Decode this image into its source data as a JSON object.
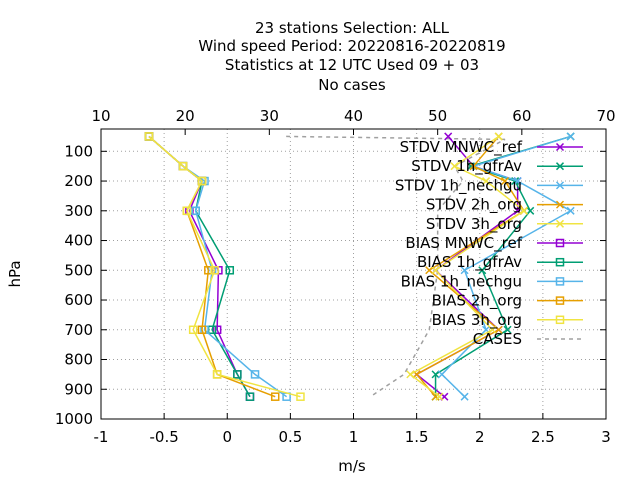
{
  "chart_data": {
    "type": "line",
    "title_lines": [
      "23 stations Selection: ALL",
      "Wind speed  Period: 20220816-20220819",
      "Statistics at 12 UTC  Used  09 + 03",
      "No cases"
    ],
    "xlabel": "m/s",
    "ylabel": "hPa",
    "xlim": [
      -1,
      3
    ],
    "x2lim": [
      10,
      70
    ],
    "ylim": [
      1000,
      25
    ],
    "x_ticks": [
      "-1",
      "-0.5",
      "0",
      "0.5",
      "1",
      "1.5",
      "2",
      "2.5",
      "3"
    ],
    "x2_ticks": [
      "10",
      "20",
      "30",
      "40",
      "50",
      "60",
      "70"
    ],
    "y_ticks": [
      "100",
      "200",
      "300",
      "400",
      "500",
      "600",
      "700",
      "800",
      "900",
      "1000"
    ],
    "grid": true,
    "legend_position": "top-right",
    "levels": [
      50,
      150,
      200,
      300,
      500,
      700,
      850,
      925
    ],
    "series": [
      {
        "name": "STDV MNWC_ref",
        "kind": "stdv",
        "marker": "x",
        "color": "#9400d3",
        "values": [
          1.75,
          1.95,
          2.3,
          2.3,
          1.65,
          2.15,
          1.5,
          1.72
        ]
      },
      {
        "name": "STDV 1h_gfrAv",
        "kind": "stdv",
        "marker": "x",
        "color": "#009e73",
        "values": [
          2.72,
          1.93,
          2.28,
          2.4,
          2.02,
          2.22,
          1.65,
          1.65
        ]
      },
      {
        "name": "STDV 1h_nechgu",
        "kind": "stdv",
        "marker": "x",
        "color": "#56b4e9",
        "values": [
          2.72,
          1.95,
          2.3,
          2.72,
          1.88,
          2.05,
          1.7,
          1.88
        ]
      },
      {
        "name": "STDV 2h_org",
        "kind": "stdv",
        "marker": "x",
        "color": "#e69f00",
        "values": [
          2.15,
          1.95,
          2.2,
          2.35,
          1.6,
          2.15,
          1.5,
          1.65
        ]
      },
      {
        "name": "STDV 3h_org",
        "kind": "stdv",
        "marker": "x",
        "color": "#f0e442",
        "values": [
          2.15,
          1.8,
          2.05,
          2.35,
          1.65,
          2.1,
          1.45,
          1.68
        ]
      },
      {
        "name": "BIAS MNWC_ref",
        "kind": "bias",
        "marker": "square",
        "color": "#9400d3",
        "values": [
          -0.62,
          -0.35,
          -0.2,
          -0.3,
          -0.07,
          -0.08,
          0.08,
          0.18
        ]
      },
      {
        "name": "BIAS 1h_gfrAv",
        "kind": "bias",
        "marker": "square",
        "color": "#009e73",
        "values": [
          -0.62,
          -0.35,
          -0.2,
          -0.25,
          0.02,
          -0.12,
          0.08,
          0.18
        ]
      },
      {
        "name": "BIAS 1h_nechgu",
        "kind": "bias",
        "marker": "square",
        "color": "#56b4e9",
        "values": [
          -0.62,
          -0.35,
          -0.18,
          -0.25,
          -0.12,
          -0.18,
          0.22,
          0.47
        ]
      },
      {
        "name": "BIAS 2h_org",
        "kind": "bias",
        "marker": "square",
        "color": "#e69f00",
        "values": [
          -0.62,
          -0.35,
          -0.2,
          -0.32,
          -0.15,
          -0.2,
          -0.08,
          0.38
        ]
      },
      {
        "name": "BIAS 3h_org",
        "kind": "bias",
        "marker": "square",
        "color": "#f0e442",
        "values": [
          -0.62,
          -0.35,
          -0.2,
          -0.32,
          -0.1,
          -0.27,
          -0.08,
          0.58
        ]
      }
    ],
    "cases": {
      "name": "CASES",
      "color": "#a0a0a0",
      "levels": [
        50,
        60,
        150,
        200,
        300,
        500,
        700,
        850,
        925
      ],
      "values": [
        32,
        58,
        52,
        53,
        50,
        50,
        49,
        46,
        42
      ]
    }
  }
}
